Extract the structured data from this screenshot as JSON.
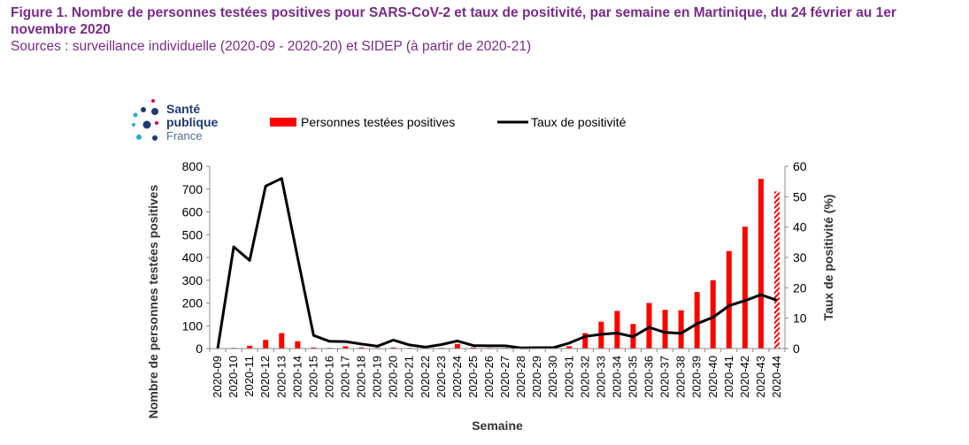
{
  "figure": {
    "title": "Figure 1. Nombre de personnes testées positives pour SARS-CoV-2 et taux de positivité, par semaine en Martinique, du 24 février au 1er novembre 2020",
    "source": "Sources : surveillance individuelle (2020-09 - 2020-20) et SIDEP (à partir de 2020-21)"
  },
  "logo": {
    "line1": "Santé",
    "line2": "publique",
    "line3": "France"
  },
  "chart_data": {
    "type": "bar+line",
    "xlabel": "Semaine",
    "ylabel_left": "Nombre de personnes testées positives",
    "ylabel_right": "Taux de positivité (%)",
    "ylim_left": [
      0,
      800
    ],
    "ylim_right": [
      0,
      60
    ],
    "yticks_left": [
      0,
      100,
      200,
      300,
      400,
      500,
      600,
      700,
      800
    ],
    "yticks_right": [
      0,
      10,
      20,
      30,
      40,
      50,
      60
    ],
    "legend_position": "top",
    "grid": false,
    "categories": [
      "2020-09",
      "2020-10",
      "2020-11",
      "2020-12",
      "2020-13",
      "2020-14",
      "2020-15",
      "2020-16",
      "2020-17",
      "2020-18",
      "2020-19",
      "2020-20",
      "2020-21",
      "2020-22",
      "2020-23",
      "2020-24",
      "2020-25",
      "2020-26",
      "2020-27",
      "2020-28",
      "2020-29",
      "2020-30",
      "2020-31",
      "2020-32",
      "2020-33",
      "2020-34",
      "2020-35",
      "2020-36",
      "2020-37",
      "2020-38",
      "2020-39",
      "2020-40",
      "2020-41",
      "2020-42",
      "2020-43",
      "2020-44"
    ],
    "series": [
      {
        "name": "Personnes testées positives",
        "kind": "bar",
        "color": "#ff0000",
        "last_bar_hatched": true,
        "values": [
          0,
          3,
          12,
          38,
          68,
          32,
          5,
          3,
          10,
          5,
          3,
          5,
          3,
          3,
          3,
          20,
          5,
          3,
          3,
          2,
          2,
          3,
          10,
          68,
          118,
          165,
          108,
          200,
          170,
          168,
          248,
          300,
          428,
          535,
          745,
          690
        ]
      },
      {
        "name": "Taux de positivité",
        "kind": "line",
        "axis": "right",
        "color": "#000000",
        "values": [
          0,
          33.5,
          29,
          53.5,
          56,
          30,
          4.3,
          2.4,
          2.3,
          1.5,
          0.8,
          2.8,
          1.2,
          0.5,
          1.3,
          2.5,
          1.0,
          0.9,
          0.9,
          0.2,
          0.3,
          0.3,
          1.8,
          4.0,
          4.7,
          5.1,
          3.9,
          7.0,
          5.3,
          5.0,
          8.2,
          10.3,
          14.1,
          15.8,
          17.7,
          15.9
        ]
      }
    ]
  }
}
